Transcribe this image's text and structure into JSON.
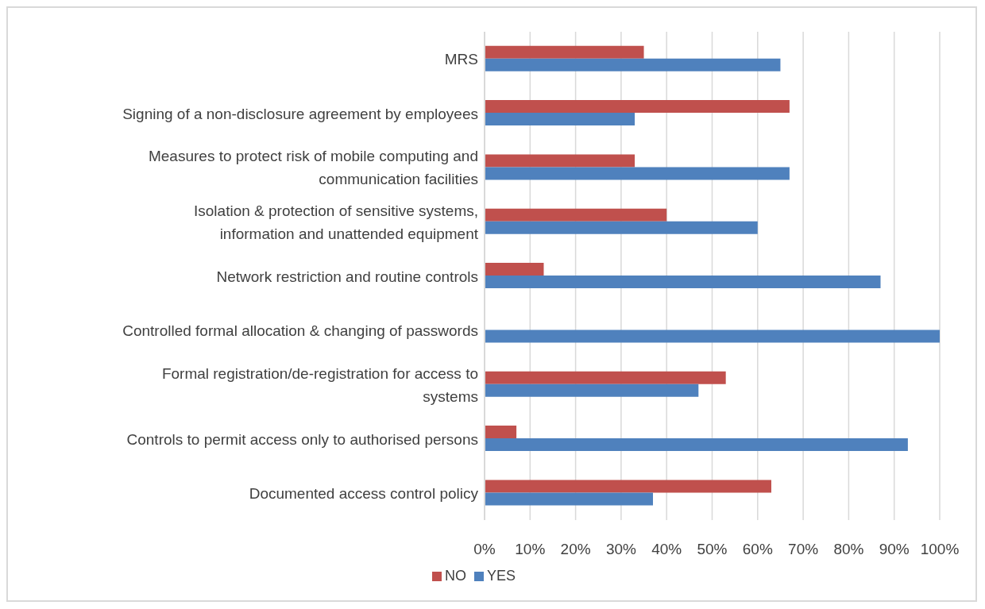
{
  "chart_data": {
    "type": "bar",
    "orientation": "horizontal",
    "categories": [
      "MRS",
      "Signing of a non-disclosure agreement by employees",
      "Measures to protect risk of mobile computing and communication facilities",
      "Isolation & protection of sensitive systems, information and unattended equipment",
      "Network restriction and routine controls",
      "Controlled formal allocation & changing of passwords",
      "Formal registration/de-registration for access to systems",
      "Controls to permit access only to authorised persons",
      "Documented access control policy"
    ],
    "series": [
      {
        "name": "NO",
        "color": "#c0504d",
        "values": [
          35,
          67,
          33,
          40,
          13,
          0,
          53,
          7,
          63
        ]
      },
      {
        "name": "YES",
        "color": "#4f81bd",
        "values": [
          65,
          33,
          67,
          60,
          87,
          100,
          47,
          93,
          37
        ]
      }
    ],
    "xlim": [
      0,
      100
    ],
    "xticks": [
      {
        "value": 0,
        "label": "0%"
      },
      {
        "value": 10,
        "label": "10%"
      },
      {
        "value": 20,
        "label": "20%"
      },
      {
        "value": 30,
        "label": "30%"
      },
      {
        "value": 40,
        "label": "40%"
      },
      {
        "value": 50,
        "label": "50%"
      },
      {
        "value": 60,
        "label": "60%"
      },
      {
        "value": 70,
        "label": "70%"
      },
      {
        "value": 80,
        "label": "80%"
      },
      {
        "value": 90,
        "label": "90%"
      },
      {
        "value": 100,
        "label": "100%"
      }
    ],
    "grid": "x",
    "legend": "bottom"
  }
}
